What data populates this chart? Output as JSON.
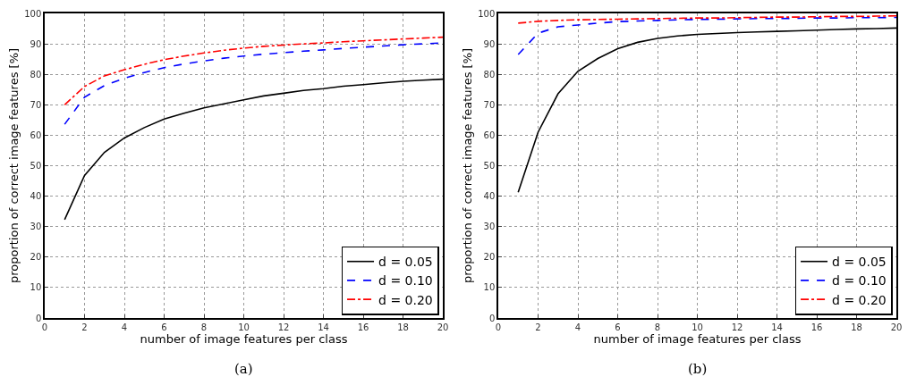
{
  "chart_data": [
    {
      "type": "line",
      "xlabel": "number of image features per class",
      "ylabel": "proportion of correct image features [%]",
      "annotations": [
        "(a)"
      ],
      "x": [
        1,
        2,
        3,
        4,
        5,
        6,
        7,
        8,
        9,
        10,
        11,
        12,
        13,
        14,
        15,
        16,
        17,
        18,
        19,
        20
      ],
      "series": [
        {
          "name": "d = 0.05",
          "color": "#000000",
          "line_style": "solid",
          "values": [
            32.3,
            46.8,
            54.4,
            59.1,
            62.5,
            65.3,
            67.2,
            69.0,
            70.3,
            71.6,
            72.9,
            73.8,
            74.7,
            75.3,
            76.1,
            76.6,
            77.2,
            77.7,
            78.1,
            78.4
          ]
        },
        {
          "name": "d = 0.10",
          "color": "#0000ff",
          "line_style": "dashed",
          "values": [
            63.6,
            72.5,
            76.3,
            78.7,
            80.6,
            82.2,
            83.4,
            84.4,
            85.3,
            86.0,
            86.6,
            87.1,
            87.6,
            88.0,
            88.5,
            88.9,
            89.3,
            89.7,
            90.0,
            90.3
          ]
        },
        {
          "name": "d = 0.20",
          "color": "#ff0000",
          "line_style": "dashdot",
          "values": [
            70.0,
            76.0,
            79.5,
            81.5,
            83.3,
            84.8,
            86.0,
            87.0,
            87.9,
            88.6,
            89.2,
            89.6,
            90.0,
            90.3,
            90.7,
            91.0,
            91.3,
            91.6,
            91.9,
            92.2
          ]
        }
      ],
      "xlim": [
        0,
        20
      ],
      "xticks": [
        0,
        2,
        4,
        6,
        8,
        10,
        12,
        14,
        16,
        18,
        20
      ],
      "ylim": [
        0,
        100
      ],
      "yticks": [
        0,
        10,
        20,
        30,
        40,
        50,
        60,
        70,
        80,
        90,
        100
      ],
      "grid": true,
      "legend": "bottom right"
    },
    {
      "type": "line",
      "xlabel": "number of image features per class",
      "ylabel": "proportion of correct image features [%]",
      "annotations": [
        "(b)"
      ],
      "x": [
        1,
        2,
        3,
        4,
        5,
        6,
        7,
        8,
        9,
        10,
        11,
        12,
        13,
        14,
        15,
        16,
        17,
        18,
        19,
        20
      ],
      "series": [
        {
          "name": "d = 0.05",
          "color": "#000000",
          "line_style": "solid",
          "values": [
            41.3,
            61.0,
            73.6,
            81.0,
            85.2,
            88.4,
            90.5,
            91.8,
            92.6,
            93.1,
            93.4,
            93.7,
            93.9,
            94.1,
            94.3,
            94.5,
            94.7,
            94.9,
            95.0,
            95.2
          ]
        },
        {
          "name": "d = 0.10",
          "color": "#0000ff",
          "line_style": "dashed",
          "values": [
            86.5,
            93.5,
            95.6,
            96.2,
            96.8,
            97.3,
            97.5,
            97.7,
            97.9,
            98.0,
            98.1,
            98.2,
            98.3,
            98.3,
            98.4,
            98.5,
            98.5,
            98.6,
            98.6,
            98.7
          ]
        },
        {
          "name": "d = 0.20",
          "color": "#ff0000",
          "line_style": "dashdot",
          "values": [
            96.8,
            97.4,
            97.7,
            97.9,
            98.0,
            98.1,
            98.2,
            98.3,
            98.4,
            98.5,
            98.5,
            98.6,
            98.7,
            98.8,
            98.8,
            98.9,
            99.0,
            99.0,
            99.1,
            99.2
          ]
        }
      ],
      "xlim": [
        0,
        20
      ],
      "xticks": [
        0,
        2,
        4,
        6,
        8,
        10,
        12,
        14,
        16,
        18,
        20
      ],
      "ylim": [
        0,
        100
      ],
      "yticks": [
        0,
        10,
        20,
        30,
        40,
        50,
        60,
        70,
        80,
        90,
        100
      ],
      "grid": true,
      "legend": "bottom right"
    }
  ]
}
